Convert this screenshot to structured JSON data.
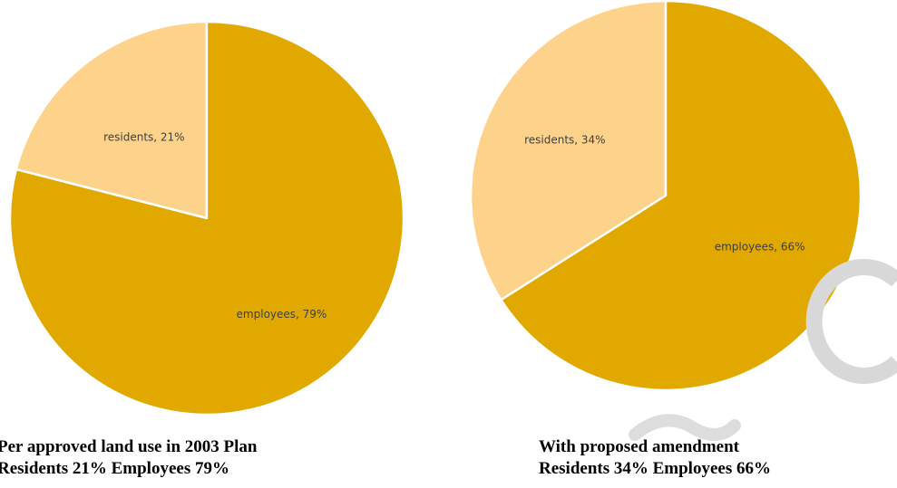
{
  "chart_data": [
    {
      "type": "pie",
      "slices": [
        {
          "name": "residents",
          "value": 21,
          "label": "residents, 21%"
        },
        {
          "name": "employees",
          "value": 79,
          "label": "employees, 79%"
        }
      ],
      "colors": {
        "residents": "#FDD28A",
        "employees": "#E1A900"
      },
      "caption": {
        "line1": "Per approved land use in 2003 Plan",
        "line2": "Residents 21% Employees 79%"
      }
    },
    {
      "type": "pie",
      "slices": [
        {
          "name": "residents",
          "value": 34,
          "label": "residents, 34%"
        },
        {
          "name": "employees",
          "value": 66,
          "label": "employees, 66%"
        }
      ],
      "colors": {
        "residents": "#FDD28A",
        "employees": "#E1A900"
      },
      "caption": {
        "line1": "With proposed amendment",
        "line2": "Residents 34% Employees 66%"
      }
    }
  ]
}
